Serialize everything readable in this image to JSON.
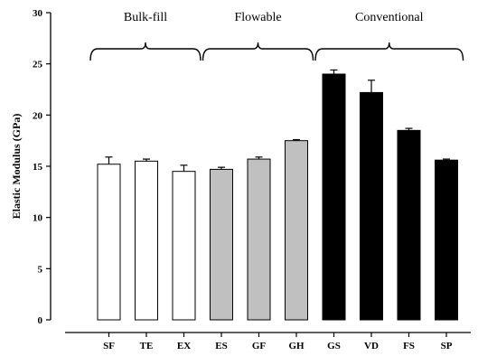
{
  "chart_data": {
    "type": "bar",
    "ylabel": "Elastic Modulus (GPa)",
    "ylim": [
      0,
      30
    ],
    "yticks": [
      0,
      5,
      10,
      15,
      20,
      25,
      30
    ],
    "categories": [
      "SF",
      "TE",
      "EX",
      "ES",
      "GF",
      "GH",
      "GS",
      "VD",
      "FS",
      "SP"
    ],
    "values": [
      15.2,
      15.5,
      14.5,
      14.7,
      15.7,
      17.5,
      24.0,
      22.2,
      18.5,
      15.6
    ],
    "errors": [
      0.7,
      0.2,
      0.6,
      0.2,
      0.2,
      0.1,
      0.4,
      1.2,
      0.2,
      0.1
    ],
    "groups": [
      {
        "name": "Bulk-fill",
        "start": 0,
        "end": 2,
        "color": "#ffffff"
      },
      {
        "name": "Flowable",
        "start": 3,
        "end": 5,
        "color": "#c0c0c0"
      },
      {
        "name": "Conventional",
        "start": 6,
        "end": 9,
        "color": "#000000"
      }
    ],
    "grid": false,
    "legend": "none"
  }
}
